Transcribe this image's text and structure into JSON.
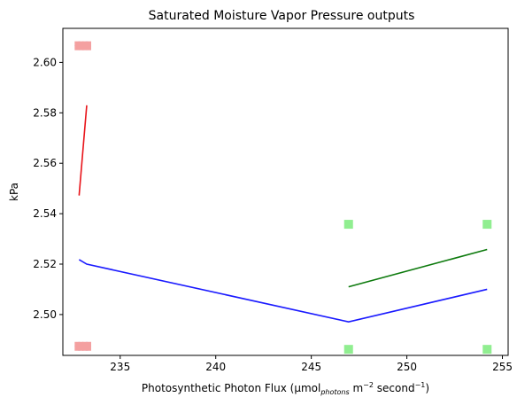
{
  "chart_data": {
    "type": "line",
    "title": "Saturated Moisture Vapor Pressure outputs",
    "xlabel": {
      "main": "Photosynthetic Photon Flux (μmol",
      "sub": "photons",
      "mid": " m",
      "sup1": "−2",
      "mid2": " second",
      "sup2": "−1",
      "end": ")"
    },
    "ylabel": "kPa",
    "xlim": [
      232.0,
      255.3
    ],
    "ylim": [
      2.4838,
      2.6135
    ],
    "xticks": [
      235,
      240,
      245,
      250,
      255
    ],
    "yticks": [
      2.5,
      2.52,
      2.54,
      2.56,
      2.58,
      2.6
    ],
    "xtick_labels": [
      "235",
      "240",
      "245",
      "250",
      "255"
    ],
    "ytick_labels": [
      "2.50",
      "2.52",
      "2.54",
      "2.56",
      "2.58",
      "2.60"
    ],
    "grid": false,
    "series": [
      {
        "kind": "line",
        "color": "#e8141a",
        "x": [
          232.85,
          233.25
        ],
        "y": [
          2.5472,
          2.583
        ]
      },
      {
        "kind": "line",
        "color": "#0d7a0d",
        "x": [
          246.95,
          254.2
        ],
        "y": [
          2.511,
          2.5258
        ]
      },
      {
        "kind": "line",
        "color": "#1a1aff",
        "x": [
          232.85,
          233.25,
          246.95,
          254.2
        ],
        "y": [
          2.5218,
          2.52,
          2.4971,
          2.51
        ]
      },
      {
        "kind": "scatter",
        "color": "#9b9bf0",
        "marker": "circle",
        "x": [
          232.85,
          233.25,
          232.85,
          233.25
        ],
        "y": [
          2.6066,
          2.6066,
          2.4874,
          2.4874
        ]
      },
      {
        "kind": "scatter",
        "color": "#f4a0a0",
        "marker": "square",
        "x": [
          232.85,
          233.25,
          232.85,
          233.25
        ],
        "y": [
          2.6066,
          2.6066,
          2.4874,
          2.4874
        ]
      },
      {
        "kind": "scatter",
        "color": "#90ee90",
        "marker": "square",
        "x": [
          246.95,
          254.2,
          246.95,
          254.2
        ],
        "y": [
          2.5358,
          2.5358,
          2.4862,
          2.4862
        ]
      }
    ]
  }
}
